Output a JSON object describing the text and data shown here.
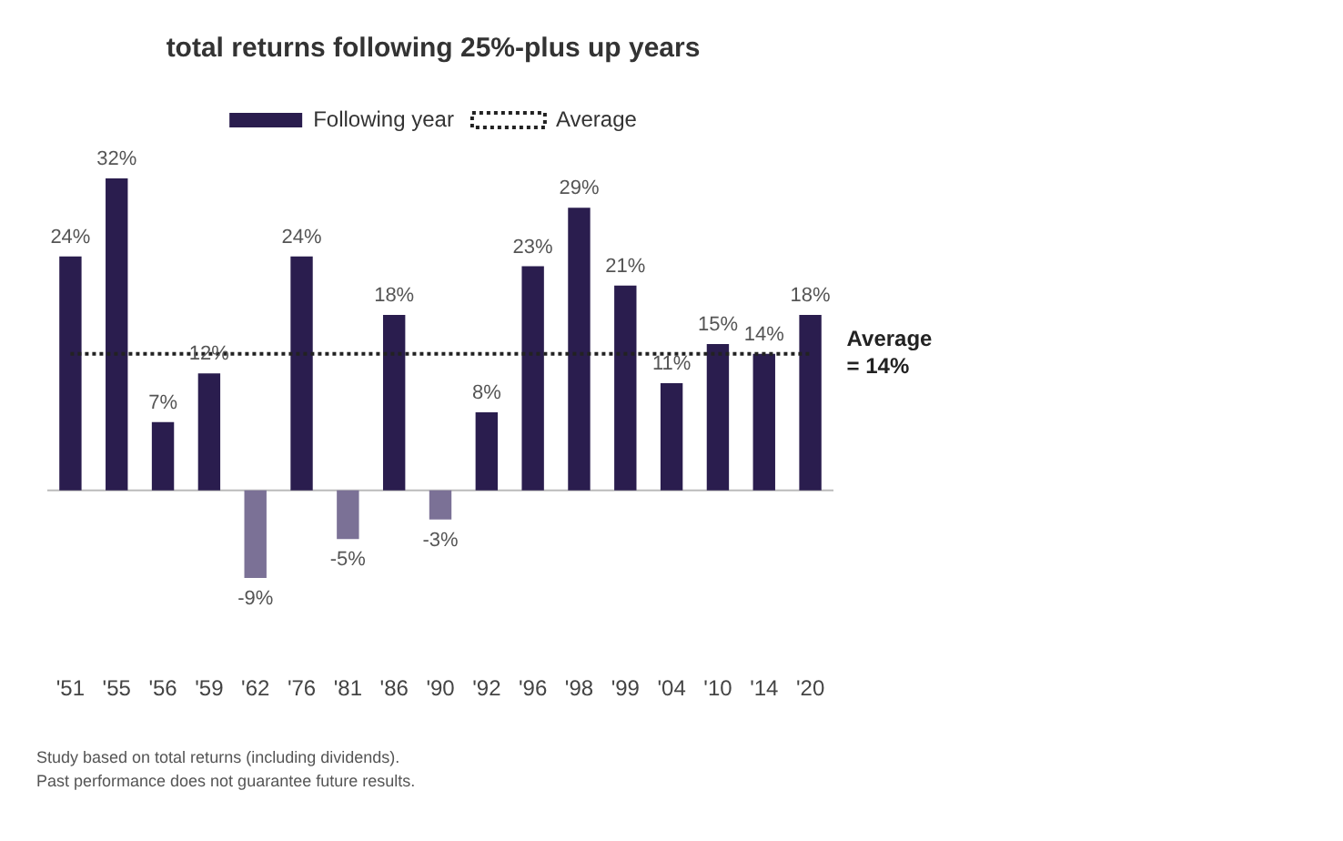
{
  "chart_data": {
    "type": "bar",
    "title": "total returns following 25%-plus up years",
    "categories": [
      "'51",
      "'55",
      "'56",
      "'59",
      "'62",
      "'76",
      "'81",
      "'86",
      "'90",
      "'92",
      "'96",
      "'98",
      "'99",
      "'04",
      "'10",
      "'14",
      "'20"
    ],
    "series": [
      {
        "name": "Following year",
        "colors": [
          "#2a1d4e",
          "#2a1d4e",
          "#2a1d4e",
          "#2a1d4e",
          "#7b7196",
          "#2a1d4e",
          "#7b7196",
          "#2a1d4e",
          "#7b7196",
          "#2a1d4e",
          "#2a1d4e",
          "#2a1d4e",
          "#2a1d4e",
          "#2a1d4e",
          "#2a1d4e",
          "#2a1d4e",
          "#2a1d4e"
        ],
        "values": [
          24,
          32,
          7,
          12,
          -9,
          24,
          -5,
          18,
          -3,
          8,
          23,
          29,
          21,
          11,
          15,
          14,
          18
        ],
        "value_labels": [
          "24%",
          "32%",
          "7%",
          "12%",
          "-9%",
          "24%",
          "-5%",
          "18%",
          "-3%",
          "8%",
          "23%",
          "29%",
          "21%",
          "11%",
          "15%",
          "14%",
          "18%"
        ]
      },
      {
        "name": "Average",
        "type": "line",
        "color": "#222222",
        "line_style": "dotted",
        "marker": "none",
        "values": [
          14,
          14,
          14,
          14,
          14,
          14,
          14,
          14,
          14,
          14,
          14,
          14,
          14,
          14,
          14,
          14,
          14
        ]
      }
    ],
    "tick_labels": "x",
    "grid": false,
    "legend": "top",
    "annotations": [
      {
        "text": "Average = 14%",
        "x": "'20",
        "y": 14
      },
      "Study based on total returns (including dividends).",
      "Past performance does not guarantee future results."
    ]
  }
}
